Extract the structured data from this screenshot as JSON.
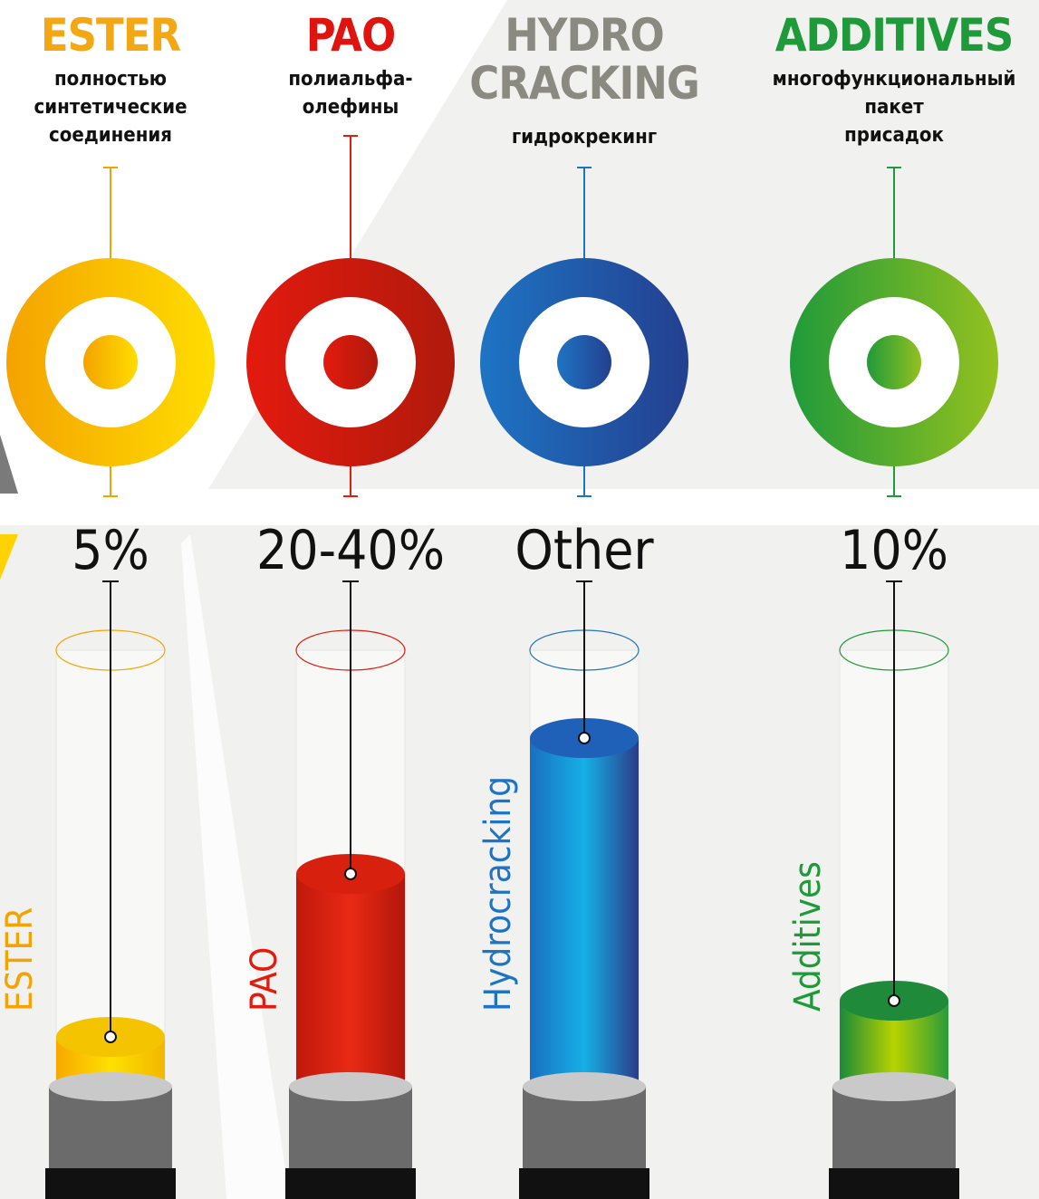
{
  "columns": [
    {
      "title": [
        "ESTER"
      ],
      "description": [
        "полностью",
        "синтетические",
        "соединения"
      ],
      "share": "5%",
      "label": "ESTER"
    },
    {
      "title": [
        "PAO"
      ],
      "description": [
        "полиальфа-",
        "олефины"
      ],
      "share": "20-40%",
      "label": "PAO"
    },
    {
      "title": [
        "HYDRO",
        "CRACKING"
      ],
      "description": [
        "гидрокрекинг"
      ],
      "share": "Other",
      "label": "Hydrocracking"
    },
    {
      "title": [
        "ADDITIVES"
      ],
      "description": [
        "многофункциональный",
        "пакет",
        "присадок"
      ],
      "share": "10%",
      "label": "Additives"
    }
  ]
}
